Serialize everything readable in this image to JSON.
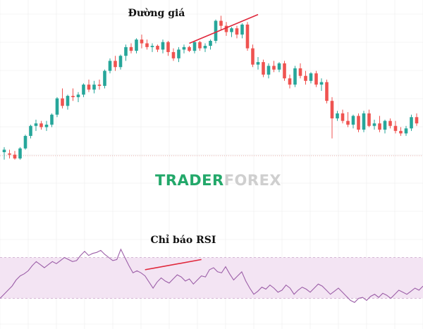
{
  "labels": {
    "price": "Đường giá",
    "rsi": "Chỉ báo RSI"
  },
  "watermark": {
    "part1": "TRADER",
    "part2": "FOREX"
  },
  "colors": {
    "up": "#26a69a",
    "down": "#ef5350",
    "divergence_line": "#e0283c",
    "rsi_line": "#9c5fa8",
    "rsi_band": "#f3e4f3",
    "watermark_primary": "#23a86a",
    "watermark_secondary": "#cfcfcf",
    "grid": "#ececec"
  },
  "chart_data": [
    {
      "type": "candlestick",
      "title": "Đường giá",
      "grid": true,
      "candles": [
        {
          "o": 49,
          "h": 53,
          "l": 43,
          "c": 51
        },
        {
          "o": 48,
          "h": 51,
          "l": 44,
          "c": 47
        },
        {
          "o": 47,
          "h": 50,
          "l": 43,
          "c": 44
        },
        {
          "o": 44,
          "h": 53,
          "l": 43,
          "c": 52
        },
        {
          "o": 52,
          "h": 63,
          "l": 51,
          "c": 62
        },
        {
          "o": 62,
          "h": 71,
          "l": 60,
          "c": 70
        },
        {
          "o": 70,
          "h": 75,
          "l": 66,
          "c": 72
        },
        {
          "o": 72,
          "h": 74,
          "l": 67,
          "c": 69
        },
        {
          "o": 69,
          "h": 74,
          "l": 66,
          "c": 71
        },
        {
          "o": 71,
          "h": 80,
          "l": 69,
          "c": 79
        },
        {
          "o": 79,
          "h": 93,
          "l": 77,
          "c": 92
        },
        {
          "o": 92,
          "h": 100,
          "l": 84,
          "c": 86
        },
        {
          "o": 86,
          "h": 95,
          "l": 83,
          "c": 94
        },
        {
          "o": 94,
          "h": 100,
          "l": 90,
          "c": 93
        },
        {
          "o": 93,
          "h": 97,
          "l": 89,
          "c": 95
        },
        {
          "o": 95,
          "h": 104,
          "l": 93,
          "c": 103
        },
        {
          "o": 103,
          "h": 107,
          "l": 97,
          "c": 99
        },
        {
          "o": 99,
          "h": 106,
          "l": 96,
          "c": 103
        },
        {
          "o": 103,
          "h": 107,
          "l": 99,
          "c": 102
        },
        {
          "o": 102,
          "h": 115,
          "l": 100,
          "c": 114
        },
        {
          "o": 114,
          "h": 124,
          "l": 112,
          "c": 122
        },
        {
          "o": 122,
          "h": 126,
          "l": 114,
          "c": 117
        },
        {
          "o": 117,
          "h": 127,
          "l": 115,
          "c": 126
        },
        {
          "o": 126,
          "h": 135,
          "l": 122,
          "c": 133
        },
        {
          "o": 133,
          "h": 136,
          "l": 128,
          "c": 130
        },
        {
          "o": 130,
          "h": 140,
          "l": 128,
          "c": 139
        },
        {
          "o": 139,
          "h": 143,
          "l": 132,
          "c": 136
        },
        {
          "o": 136,
          "h": 139,
          "l": 131,
          "c": 133
        },
        {
          "o": 133,
          "h": 136,
          "l": 129,
          "c": 134
        },
        {
          "o": 134,
          "h": 135,
          "l": 129,
          "c": 131
        },
        {
          "o": 131,
          "h": 139,
          "l": 128,
          "c": 137
        },
        {
          "o": 137,
          "h": 138,
          "l": 126,
          "c": 129
        },
        {
          "o": 129,
          "h": 132,
          "l": 122,
          "c": 124
        },
        {
          "o": 124,
          "h": 133,
          "l": 121,
          "c": 131
        },
        {
          "o": 131,
          "h": 135,
          "l": 128,
          "c": 133
        },
        {
          "o": 133,
          "h": 134,
          "l": 129,
          "c": 130
        },
        {
          "o": 130,
          "h": 138,
          "l": 128,
          "c": 137
        },
        {
          "o": 137,
          "h": 138,
          "l": 130,
          "c": 132
        },
        {
          "o": 132,
          "h": 136,
          "l": 129,
          "c": 134
        },
        {
          "o": 134,
          "h": 139,
          "l": 131,
          "c": 138
        },
        {
          "o": 138,
          "h": 155,
          "l": 136,
          "c": 154
        },
        {
          "o": 154,
          "h": 158,
          "l": 147,
          "c": 150
        },
        {
          "o": 150,
          "h": 153,
          "l": 142,
          "c": 145
        },
        {
          "o": 145,
          "h": 149,
          "l": 141,
          "c": 148
        },
        {
          "o": 148,
          "h": 150,
          "l": 140,
          "c": 143
        },
        {
          "o": 143,
          "h": 152,
          "l": 140,
          "c": 151
        },
        {
          "o": 151,
          "h": 153,
          "l": 130,
          "c": 132
        },
        {
          "o": 132,
          "h": 135,
          "l": 117,
          "c": 119
        },
        {
          "o": 119,
          "h": 125,
          "l": 115,
          "c": 121
        },
        {
          "o": 121,
          "h": 123,
          "l": 109,
          "c": 111
        },
        {
          "o": 111,
          "h": 120,
          "l": 108,
          "c": 118
        },
        {
          "o": 118,
          "h": 122,
          "l": 113,
          "c": 115
        },
        {
          "o": 115,
          "h": 121,
          "l": 113,
          "c": 120
        },
        {
          "o": 120,
          "h": 122,
          "l": 106,
          "c": 108
        },
        {
          "o": 108,
          "h": 111,
          "l": 100,
          "c": 103
        },
        {
          "o": 103,
          "h": 118,
          "l": 101,
          "c": 116
        },
        {
          "o": 116,
          "h": 120,
          "l": 108,
          "c": 110
        },
        {
          "o": 110,
          "h": 114,
          "l": 103,
          "c": 106
        },
        {
          "o": 106,
          "h": 113,
          "l": 104,
          "c": 112
        },
        {
          "o": 112,
          "h": 114,
          "l": 101,
          "c": 103
        },
        {
          "o": 103,
          "h": 108,
          "l": 98,
          "c": 105
        },
        {
          "o": 105,
          "h": 107,
          "l": 88,
          "c": 90
        },
        {
          "o": 90,
          "h": 93,
          "l": 60,
          "c": 76
        },
        {
          "o": 76,
          "h": 82,
          "l": 74,
          "c": 80
        },
        {
          "o": 80,
          "h": 83,
          "l": 72,
          "c": 74
        },
        {
          "o": 74,
          "h": 81,
          "l": 69,
          "c": 71
        },
        {
          "o": 71,
          "h": 79,
          "l": 68,
          "c": 78
        },
        {
          "o": 78,
          "h": 80,
          "l": 65,
          "c": 67
        },
        {
          "o": 67,
          "h": 82,
          "l": 65,
          "c": 80
        },
        {
          "o": 80,
          "h": 83,
          "l": 69,
          "c": 70
        },
        {
          "o": 70,
          "h": 75,
          "l": 67,
          "c": 72
        },
        {
          "o": 72,
          "h": 78,
          "l": 65,
          "c": 67
        },
        {
          "o": 67,
          "h": 75,
          "l": 64,
          "c": 74
        },
        {
          "o": 74,
          "h": 76,
          "l": 68,
          "c": 70
        },
        {
          "o": 70,
          "h": 74,
          "l": 64,
          "c": 66
        },
        {
          "o": 66,
          "h": 69,
          "l": 62,
          "c": 64
        },
        {
          "o": 64,
          "h": 70,
          "l": 62,
          "c": 68
        },
        {
          "o": 68,
          "h": 79,
          "l": 66,
          "c": 77
        },
        {
          "o": 77,
          "h": 80,
          "l": 70,
          "c": 72
        }
      ],
      "divergence_line": {
        "from_index": 35,
        "from_value": 136,
        "to_index": 48,
        "to_value": 159
      }
    },
    {
      "type": "line",
      "title": "Chỉ báo RSI",
      "grid": true,
      "band": [
        30,
        70
      ],
      "values": [
        30,
        34,
        38,
        42,
        48,
        52,
        54,
        57,
        62,
        66,
        63,
        60,
        63,
        66,
        64,
        67,
        70,
        68,
        66,
        67,
        72,
        76,
        72,
        74,
        75,
        77,
        73,
        70,
        67,
        68,
        78,
        70,
        62,
        55,
        57,
        55,
        52,
        46,
        40,
        46,
        50,
        47,
        45,
        49,
        53,
        51,
        47,
        49,
        44,
        48,
        52,
        51,
        58,
        60,
        56,
        55,
        61,
        54,
        48,
        52,
        56,
        47,
        40,
        34,
        37,
        41,
        39,
        43,
        40,
        36,
        38,
        43,
        40,
        34,
        38,
        41,
        39,
        36,
        40,
        44,
        42,
        38,
        34,
        37,
        40,
        36,
        32,
        28,
        26,
        30,
        31,
        28,
        32,
        34,
        31,
        35,
        33,
        30,
        34,
        38,
        36,
        34,
        37,
        40,
        38,
        42
      ],
      "divergence_line": {
        "from_index": 36,
        "from_value": 58,
        "to_index": 50,
        "to_value": 68
      }
    }
  ]
}
